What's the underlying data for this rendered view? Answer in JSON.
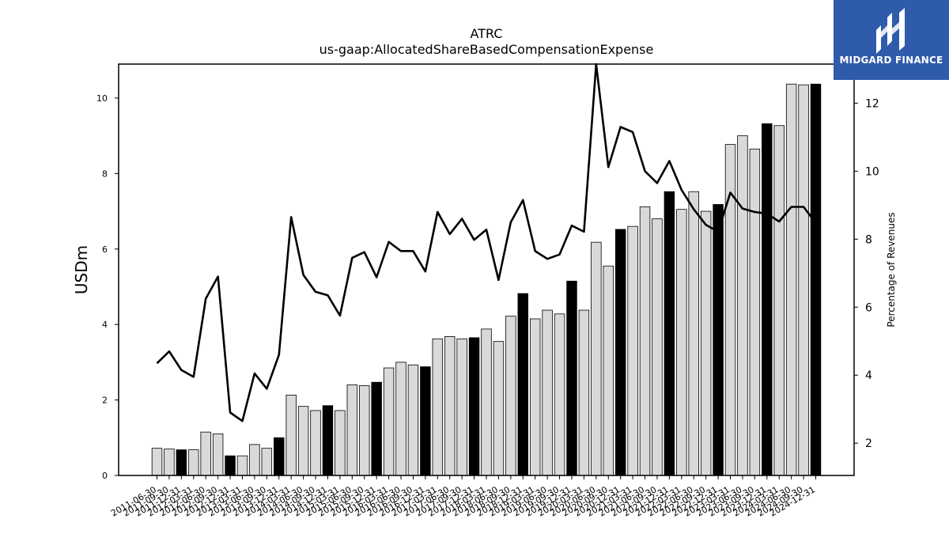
{
  "logo": {
    "text": "MIDGARD FINANCE",
    "icon": "midgard-logo-icon",
    "color": "#2f5bab"
  },
  "chart_data": {
    "type": "bar",
    "title": "ATRC",
    "subtitle": "us-gaap:AllocatedShareBasedCompensationExpense",
    "ylabel": "USDm",
    "ylabel_right": "Percentage of Revenues",
    "ylim": [
      0,
      10.9
    ],
    "ylim_right": [
      1.05,
      13.15
    ],
    "yticks": [
      0,
      2,
      4,
      6,
      8,
      10
    ],
    "yticks_right": [
      2,
      4,
      6,
      8,
      10,
      12
    ],
    "grid": false,
    "bar_colors": {
      "quarter": "#d9d9d9",
      "year_end": "#000000"
    },
    "categories": [
      "2011-06-30",
      "2011-09-30",
      "2011-12-31",
      "2012-03-31",
      "2012-06-30",
      "2012-09-30",
      "2012-12-31",
      "2013-03-31",
      "2013-06-30",
      "2013-09-30",
      "2013-12-31",
      "2014-03-31",
      "2014-06-30",
      "2014-09-30",
      "2014-12-31",
      "2015-03-31",
      "2015-06-30",
      "2015-09-30",
      "2015-12-31",
      "2016-03-31",
      "2016-06-30",
      "2016-09-30",
      "2016-12-31",
      "2017-03-31",
      "2017-06-30",
      "2017-09-30",
      "2017-12-31",
      "2018-03-31",
      "2018-06-30",
      "2018-09-30",
      "2018-12-31",
      "2019-03-31",
      "2019-06-30",
      "2019-09-30",
      "2019-12-31",
      "2020-03-31",
      "2020-06-30",
      "2020-09-30",
      "2020-12-31",
      "2021-03-31",
      "2021-06-30",
      "2021-09-30",
      "2021-12-31",
      "2022-03-31",
      "2022-06-30",
      "2022-09-30",
      "2022-12-31",
      "2023-03-31",
      "2023-06-30",
      "2023-09-30",
      "2023-12-31",
      "2024-03-31",
      "2024-06-30",
      "2024-09-30",
      "2024-12-31"
    ],
    "series": [
      {
        "name": "",
        "kind": "bar",
        "axis": "left",
        "values": [
          0.72,
          0.7,
          0.68,
          0.68,
          1.15,
          1.1,
          0.52,
          0.52,
          0.82,
          0.72,
          1.0,
          2.13,
          1.83,
          1.72,
          1.85,
          1.72,
          2.4,
          2.38,
          2.47,
          2.85,
          3.0,
          2.93,
          2.88,
          3.62,
          3.68,
          3.62,
          3.65,
          3.88,
          3.55,
          4.22,
          4.82,
          4.15,
          4.38,
          4.28,
          5.15,
          4.38,
          6.18,
          5.55,
          6.52,
          6.6,
          7.12,
          6.8,
          7.52,
          7.05,
          7.52,
          7.0,
          7.18,
          8.77,
          9.0,
          8.65,
          9.32,
          9.27,
          10.37,
          10.35,
          10.37
        ]
      },
      {
        "name": "",
        "kind": "line",
        "axis": "right",
        "values": [
          4.35,
          4.7,
          4.15,
          3.95,
          6.25,
          6.9,
          2.9,
          2.65,
          4.05,
          3.6,
          4.6,
          8.65,
          6.95,
          6.45,
          6.35,
          5.75,
          7.45,
          7.62,
          6.88,
          7.92,
          7.65,
          7.65,
          7.05,
          8.8,
          8.15,
          8.6,
          7.98,
          8.28,
          6.8,
          8.5,
          9.15,
          7.65,
          7.42,
          7.55,
          8.4,
          8.22,
          13.15,
          10.12,
          11.3,
          11.15,
          10.0,
          9.65,
          10.3,
          9.45,
          8.88,
          8.42,
          8.22,
          9.37,
          8.9,
          8.8,
          8.75,
          8.52,
          8.95,
          8.95,
          8.48
        ]
      }
    ]
  }
}
